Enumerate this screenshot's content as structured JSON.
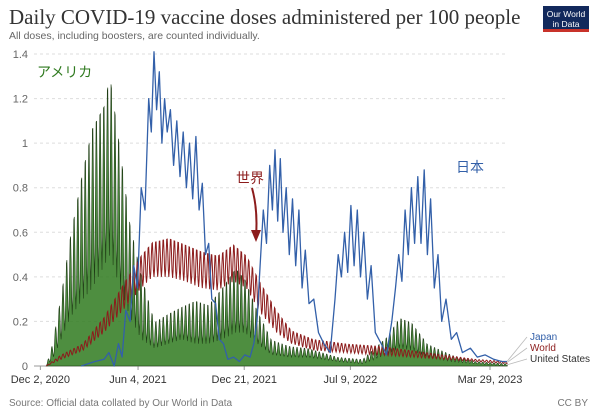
{
  "header": {
    "title": "Daily COVID-19 vaccine doses administered per 100 people",
    "subtitle": "All doses, including boosters, are counted individually.",
    "logo_line1": "Our World",
    "logo_line2": "in Data"
  },
  "footer": {
    "source": "Source: Official data collated by Our World in Data",
    "license": "CC BY"
  },
  "chart_data": {
    "type": "line",
    "title": "Daily COVID-19 vaccine doses administered per 100 people",
    "subtitle": "All doses, including boosters, are counted individually.",
    "xlabel": "",
    "ylabel": "",
    "ylim": [
      0,
      1.4
    ],
    "xlim": [
      "2020-11-20",
      "2023-04-30"
    ],
    "grid": "horizontal",
    "y_ticks": [
      {
        "value": 0,
        "label": "0"
      },
      {
        "value": 0.2,
        "label": "0.2"
      },
      {
        "value": 0.4,
        "label": "0.4"
      },
      {
        "value": 0.6,
        "label": "0.6"
      },
      {
        "value": 0.8,
        "label": "0.8"
      },
      {
        "value": 1.0,
        "label": "1"
      },
      {
        "value": 1.2,
        "label": "1.2"
      },
      {
        "value": 1.4,
        "label": "1.4"
      }
    ],
    "x_ticks": [
      {
        "date": "2020-12-02",
        "label": "Dec 2, 2020"
      },
      {
        "date": "2021-06-04",
        "label": "Jun 4, 2021"
      },
      {
        "date": "2021-12-21",
        "label": "Dec 21, 2021"
      },
      {
        "date": "2022-07-09",
        "label": "Jul 9, 2022"
      },
      {
        "date": "2023-03-29",
        "label": "Mar 29, 2023"
      }
    ],
    "legend_position": "right",
    "series": [
      {
        "name": "United States",
        "color": "#1e3c14",
        "fill": "#2f7a1f",
        "oscillating": true,
        "envelope": [
          [
            "2020-12-13",
            0.0,
            0.0
          ],
          [
            "2020-12-25",
            0.03,
            0.1
          ],
          [
            "2021-01-10",
            0.12,
            0.32
          ],
          [
            "2021-01-28",
            0.22,
            0.6
          ],
          [
            "2021-02-20",
            0.3,
            0.9
          ],
          [
            "2021-03-10",
            0.35,
            1.1
          ],
          [
            "2021-04-01",
            0.45,
            1.2
          ],
          [
            "2021-04-12",
            0.5,
            1.34
          ],
          [
            "2021-05-01",
            0.35,
            1.0
          ],
          [
            "2021-05-20",
            0.22,
            0.65
          ],
          [
            "2021-06-10",
            0.12,
            0.42
          ],
          [
            "2021-07-05",
            0.08,
            0.2
          ],
          [
            "2021-08-01",
            0.1,
            0.24
          ],
          [
            "2021-08-25",
            0.12,
            0.27
          ],
          [
            "2021-09-20",
            0.1,
            0.3
          ],
          [
            "2021-10-15",
            0.1,
            0.28
          ],
          [
            "2021-11-10",
            0.12,
            0.36
          ],
          [
            "2021-12-05",
            0.15,
            0.45
          ],
          [
            "2021-12-22",
            0.15,
            0.4
          ],
          [
            "2022-01-15",
            0.1,
            0.25
          ],
          [
            "2022-02-10",
            0.05,
            0.12
          ],
          [
            "2022-03-15",
            0.04,
            0.09
          ],
          [
            "2022-04-20",
            0.04,
            0.08
          ],
          [
            "2022-06-15",
            0.02,
            0.04
          ],
          [
            "2022-08-01",
            0.01,
            0.03
          ],
          [
            "2022-09-15",
            0.05,
            0.13
          ],
          [
            "2022-10-10",
            0.08,
            0.22
          ],
          [
            "2022-11-01",
            0.07,
            0.2
          ],
          [
            "2022-12-01",
            0.04,
            0.1
          ],
          [
            "2023-01-15",
            0.02,
            0.05
          ],
          [
            "2023-03-01",
            0.01,
            0.02
          ],
          [
            "2023-05-01",
            0.0,
            0.01
          ]
        ]
      },
      {
        "name": "World",
        "color": "#8c1c1c",
        "oscillating": true,
        "envelope": [
          [
            "2020-12-13",
            0.0,
            0.0
          ],
          [
            "2021-01-10",
            0.03,
            0.05
          ],
          [
            "2021-02-20",
            0.07,
            0.1
          ],
          [
            "2021-04-01",
            0.15,
            0.22
          ],
          [
            "2021-05-10",
            0.26,
            0.38
          ],
          [
            "2021-06-10",
            0.35,
            0.5
          ],
          [
            "2021-07-01",
            0.4,
            0.56
          ],
          [
            "2021-08-01",
            0.4,
            0.58
          ],
          [
            "2021-09-01",
            0.38,
            0.55
          ],
          [
            "2021-10-01",
            0.35,
            0.52
          ],
          [
            "2021-11-01",
            0.34,
            0.5
          ],
          [
            "2021-12-01",
            0.38,
            0.55
          ],
          [
            "2021-12-25",
            0.35,
            0.5
          ],
          [
            "2022-01-20",
            0.24,
            0.38
          ],
          [
            "2022-02-20",
            0.15,
            0.25
          ],
          [
            "2022-03-20",
            0.1,
            0.16
          ],
          [
            "2022-05-01",
            0.07,
            0.12
          ],
          [
            "2022-07-01",
            0.06,
            0.1
          ],
          [
            "2022-09-01",
            0.05,
            0.09
          ],
          [
            "2022-11-01",
            0.04,
            0.07
          ],
          [
            "2023-01-01",
            0.03,
            0.05
          ],
          [
            "2023-03-01",
            0.02,
            0.03
          ],
          [
            "2023-05-01",
            0.01,
            0.02
          ]
        ]
      },
      {
        "name": "Japan",
        "color": "#3360a9",
        "oscillating": false,
        "points": [
          [
            "2021-02-17",
            0.0
          ],
          [
            "2021-03-15",
            0.02
          ],
          [
            "2021-04-01",
            0.03
          ],
          [
            "2021-04-10",
            0.06
          ],
          [
            "2021-04-20",
            0.0
          ],
          [
            "2021-04-28",
            0.1
          ],
          [
            "2021-05-05",
            0.04
          ],
          [
            "2021-05-12",
            0.25
          ],
          [
            "2021-05-20",
            0.2
          ],
          [
            "2021-05-27",
            0.45
          ],
          [
            "2021-06-03",
            0.35
          ],
          [
            "2021-06-10",
            0.8
          ],
          [
            "2021-06-17",
            0.7
          ],
          [
            "2021-06-24",
            1.2
          ],
          [
            "2021-06-29",
            1.05
          ],
          [
            "2021-07-04",
            1.41
          ],
          [
            "2021-07-09",
            1.15
          ],
          [
            "2021-07-14",
            1.32
          ],
          [
            "2021-07-19",
            1.0
          ],
          [
            "2021-07-24",
            1.2
          ],
          [
            "2021-07-29",
            1.05
          ],
          [
            "2021-08-04",
            1.15
          ],
          [
            "2021-08-10",
            0.9
          ],
          [
            "2021-08-16",
            1.1
          ],
          [
            "2021-08-22",
            0.85
          ],
          [
            "2021-08-28",
            1.05
          ],
          [
            "2021-09-03",
            0.8
          ],
          [
            "2021-09-09",
            1.0
          ],
          [
            "2021-09-15",
            0.75
          ],
          [
            "2021-09-21",
            1.03
          ],
          [
            "2021-09-27",
            0.7
          ],
          [
            "2021-10-03",
            0.82
          ],
          [
            "2021-10-09",
            0.5
          ],
          [
            "2021-10-15",
            0.55
          ],
          [
            "2021-10-21",
            0.3
          ],
          [
            "2021-10-28",
            0.28
          ],
          [
            "2021-11-04",
            0.12
          ],
          [
            "2021-11-12",
            0.1
          ],
          [
            "2021-11-20",
            0.03
          ],
          [
            "2021-12-01",
            0.04
          ],
          [
            "2021-12-12",
            0.02
          ],
          [
            "2021-12-22",
            0.05
          ],
          [
            "2022-01-01",
            0.04
          ],
          [
            "2022-01-08",
            0.1
          ],
          [
            "2022-01-14",
            0.2
          ],
          [
            "2022-01-20",
            0.45
          ],
          [
            "2022-01-26",
            0.7
          ],
          [
            "2022-02-01",
            0.55
          ],
          [
            "2022-02-07",
            0.9
          ],
          [
            "2022-02-12",
            0.7
          ],
          [
            "2022-02-17",
            0.97
          ],
          [
            "2022-02-22",
            0.65
          ],
          [
            "2022-02-27",
            0.93
          ],
          [
            "2022-03-04",
            0.6
          ],
          [
            "2022-03-10",
            0.8
          ],
          [
            "2022-03-16",
            0.5
          ],
          [
            "2022-03-22",
            0.75
          ],
          [
            "2022-03-28",
            0.45
          ],
          [
            "2022-04-03",
            0.7
          ],
          [
            "2022-04-09",
            0.35
          ],
          [
            "2022-04-15",
            0.52
          ],
          [
            "2022-04-22",
            0.28
          ],
          [
            "2022-05-01",
            0.3
          ],
          [
            "2022-05-10",
            0.15
          ],
          [
            "2022-05-20",
            0.1
          ],
          [
            "2022-06-01",
            0.06
          ],
          [
            "2022-06-10",
            0.3
          ],
          [
            "2022-06-16",
            0.5
          ],
          [
            "2022-06-22",
            0.4
          ],
          [
            "2022-06-28",
            0.6
          ],
          [
            "2022-07-04",
            0.42
          ],
          [
            "2022-07-10",
            0.72
          ],
          [
            "2022-07-16",
            0.45
          ],
          [
            "2022-07-22",
            0.7
          ],
          [
            "2022-07-28",
            0.4
          ],
          [
            "2022-08-03",
            0.6
          ],
          [
            "2022-08-10",
            0.3
          ],
          [
            "2022-08-17",
            0.45
          ],
          [
            "2022-08-25",
            0.15
          ],
          [
            "2022-09-05",
            0.1
          ],
          [
            "2022-09-15",
            0.05
          ],
          [
            "2022-09-25",
            0.2
          ],
          [
            "2022-10-02",
            0.35
          ],
          [
            "2022-10-08",
            0.5
          ],
          [
            "2022-10-14",
            0.38
          ],
          [
            "2022-10-20",
            0.7
          ],
          [
            "2022-10-26",
            0.5
          ],
          [
            "2022-11-01",
            0.8
          ],
          [
            "2022-11-07",
            0.55
          ],
          [
            "2022-11-13",
            0.85
          ],
          [
            "2022-11-19",
            0.55
          ],
          [
            "2022-11-25",
            0.88
          ],
          [
            "2022-12-01",
            0.5
          ],
          [
            "2022-12-07",
            0.75
          ],
          [
            "2022-12-14",
            0.35
          ],
          [
            "2022-12-21",
            0.5
          ],
          [
            "2022-12-28",
            0.2
          ],
          [
            "2023-01-05",
            0.3
          ],
          [
            "2023-01-15",
            0.12
          ],
          [
            "2023-01-25",
            0.15
          ],
          [
            "2023-02-05",
            0.06
          ],
          [
            "2023-02-20",
            0.08
          ],
          [
            "2023-03-05",
            0.04
          ],
          [
            "2023-03-20",
            0.05
          ],
          [
            "2023-04-05",
            0.03
          ],
          [
            "2023-04-20",
            0.02
          ],
          [
            "2023-04-30",
            0.02
          ]
        ]
      }
    ],
    "annotations": [
      {
        "text": "アメリカ",
        "series": "United States",
        "color": "#2f7a1f"
      },
      {
        "text": "世界",
        "series": "World",
        "color": "#8c1c1c"
      },
      {
        "text": "日本",
        "series": "Japan",
        "color": "#3360a9"
      }
    ]
  }
}
